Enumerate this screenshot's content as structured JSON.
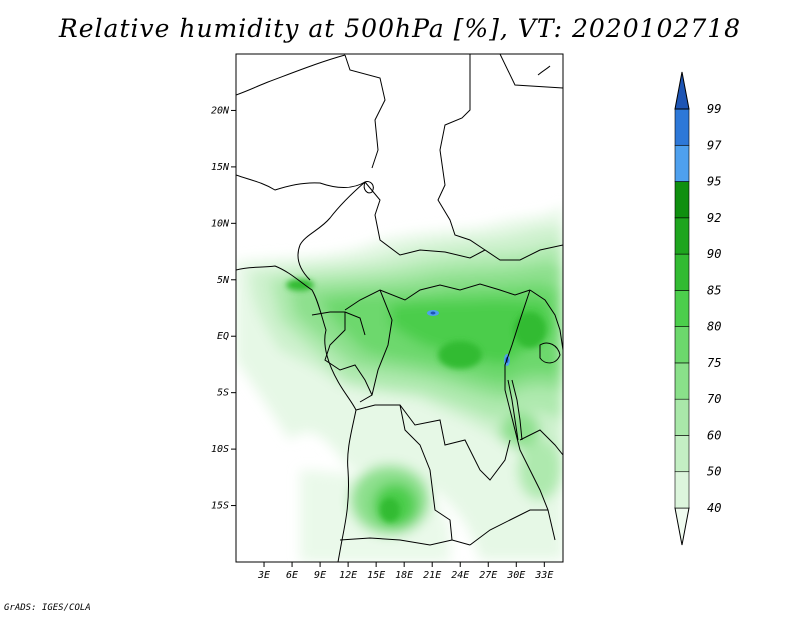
{
  "title": "Relative humidity at 500hPa [%], VT: 2020102718",
  "credit": "GrADS: IGES/COLA",
  "map": {
    "lat_labels": [
      {
        "value": 20,
        "label": "20N"
      },
      {
        "value": 15,
        "label": "15N"
      },
      {
        "value": 10,
        "label": "10N"
      },
      {
        "value": 5,
        "label": "5N"
      },
      {
        "value": 0,
        "label": "EQ"
      },
      {
        "value": -5,
        "label": "5S"
      },
      {
        "value": -10,
        "label": "10S"
      },
      {
        "value": -15,
        "label": "15S"
      }
    ],
    "lon_labels": [
      {
        "value": 3,
        "label": "3E"
      },
      {
        "value": 6,
        "label": "6E"
      },
      {
        "value": 9,
        "label": "9E"
      },
      {
        "value": 12,
        "label": "12E"
      },
      {
        "value": 15,
        "label": "15E"
      },
      {
        "value": 18,
        "label": "18E"
      },
      {
        "value": 21,
        "label": "21E"
      },
      {
        "value": 24,
        "label": "24E"
      },
      {
        "value": 27,
        "label": "27E"
      },
      {
        "value": 30,
        "label": "30E"
      },
      {
        "value": 33,
        "label": "33E"
      }
    ],
    "lon_range": [
      0,
      35
    ],
    "lat_range": [
      -20,
      25
    ]
  },
  "colorbar": {
    "levels": [
      "40",
      "50",
      "60",
      "70",
      "75",
      "80",
      "85",
      "90",
      "92",
      "95",
      "97",
      "99"
    ],
    "colors": [
      "#f0fbf0",
      "#dcf5dc",
      "#c4efc4",
      "#a9e8a9",
      "#8ae08a",
      "#6cd86c",
      "#4cce4c",
      "#32bb32",
      "#1ea51e",
      "#0f8f0f",
      "#4ea0ee",
      "#2d78d8",
      "#1e55b4"
    ]
  },
  "colors": {
    "border": "#000000",
    "background": "#ffffff"
  }
}
